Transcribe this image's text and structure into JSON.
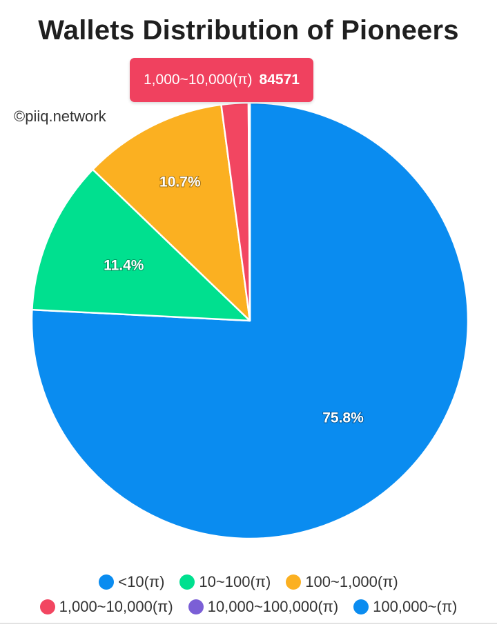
{
  "chart_data": {
    "type": "pie",
    "title": "Wallets Distribution of Pioneers",
    "categories": [
      "<10(π)",
      "10~100(π)",
      "100~1,000(π)",
      "1,000~10,000(π)",
      "10,000~100,000(π)",
      "100,000~(π)"
    ],
    "values": [
      75.8,
      11.4,
      10.7,
      2.0,
      0.08,
      0.02
    ],
    "slice_labels": [
      "75.8%",
      "11.4%",
      "10.7%",
      "",
      "",
      ""
    ],
    "colors": [
      "#0a8cf0",
      "#00e08f",
      "#fbb021",
      "#f24661",
      "#7b5fd6",
      "#0a8cf0"
    ],
    "legend_position": "bottom",
    "tooltip": {
      "category": "1,000~10,000(π)",
      "value": "84571",
      "color": "#f24661"
    }
  },
  "watermark": "©piiq.network"
}
